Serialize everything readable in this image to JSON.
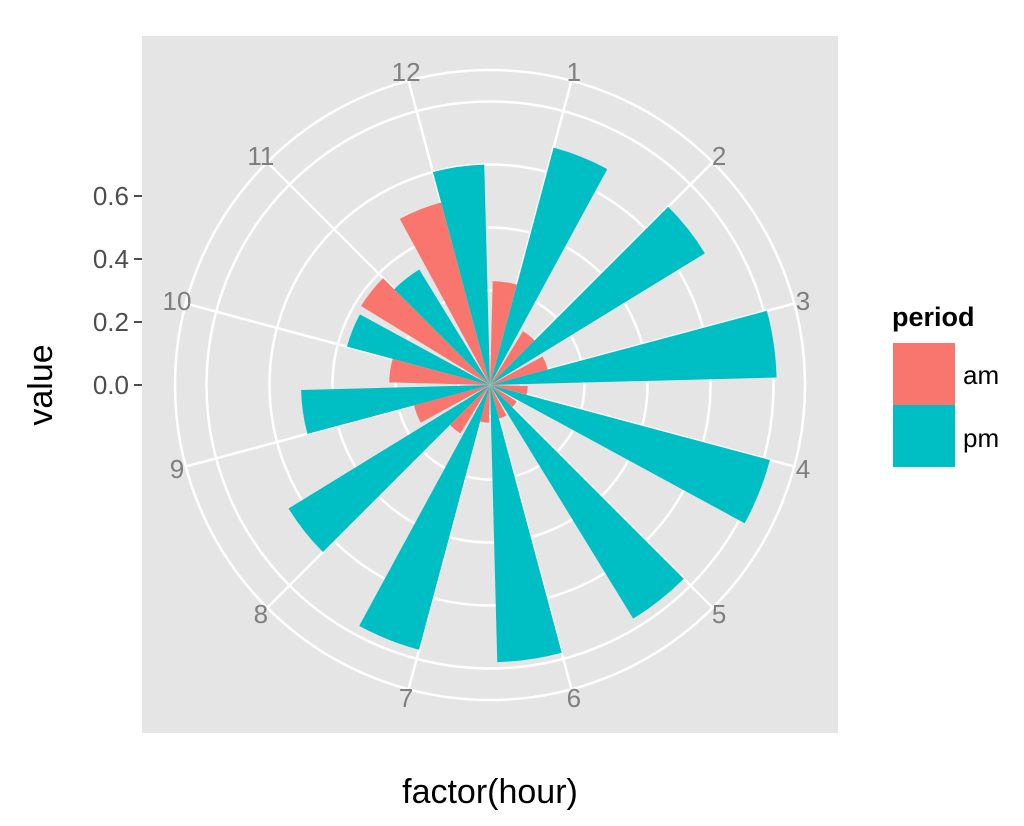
{
  "chart_data": {
    "type": "bar",
    "coord": "polar",
    "xlabel": "factor(hour)",
    "ylabel": "value",
    "y_ticks": [
      "0.0",
      "0.2",
      "0.4",
      "0.6"
    ],
    "ylim": [
      -0.3,
      0.7
    ],
    "categories": [
      "1",
      "2",
      "3",
      "4",
      "5",
      "6",
      "7",
      "8",
      "9",
      "10",
      "11",
      "12"
    ],
    "series": [
      {
        "name": "am",
        "color": "#F8766D",
        "values": [
          0.03,
          -0.1,
          -0.11,
          -0.18,
          -0.2,
          -0.19,
          -0.18,
          -0.12,
          -0.05,
          0.02,
          0.18,
          0.3
        ]
      },
      {
        "name": "pm",
        "color": "#00BFC4",
        "values": [
          0.48,
          0.5,
          0.61,
          0.62,
          0.57,
          0.58,
          0.57,
          0.45,
          0.3,
          0.17,
          0.13,
          0.4
        ]
      }
    ],
    "legend": {
      "title": "period",
      "labels": [
        "am",
        "pm"
      ],
      "position": "right"
    },
    "grid": true
  }
}
